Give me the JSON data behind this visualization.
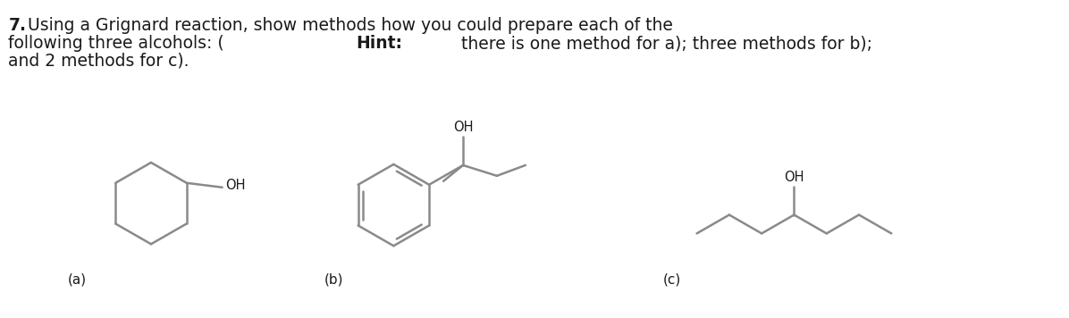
{
  "background_color": "#ffffff",
  "line_color": "#8a8a8a",
  "text_color": "#1a1a1a",
  "fig_width": 11.96,
  "fig_height": 3.56,
  "dpi": 100,
  "line1": "Using a Grignard reaction, show methods how you could prepare each of the",
  "line2_pre": "following three alcohols: (",
  "line2_bold": "Hint:",
  "line2_post": " there is one method for a); three methods for b);",
  "line3": "and 2 methods for c).",
  "label_a": "(a)",
  "label_b": "(b)",
  "label_c": "(c)",
  "oh_label": "OH",
  "fontsize_header": 13.5,
  "fontsize_label": 11,
  "fontsize_oh": 10.5
}
